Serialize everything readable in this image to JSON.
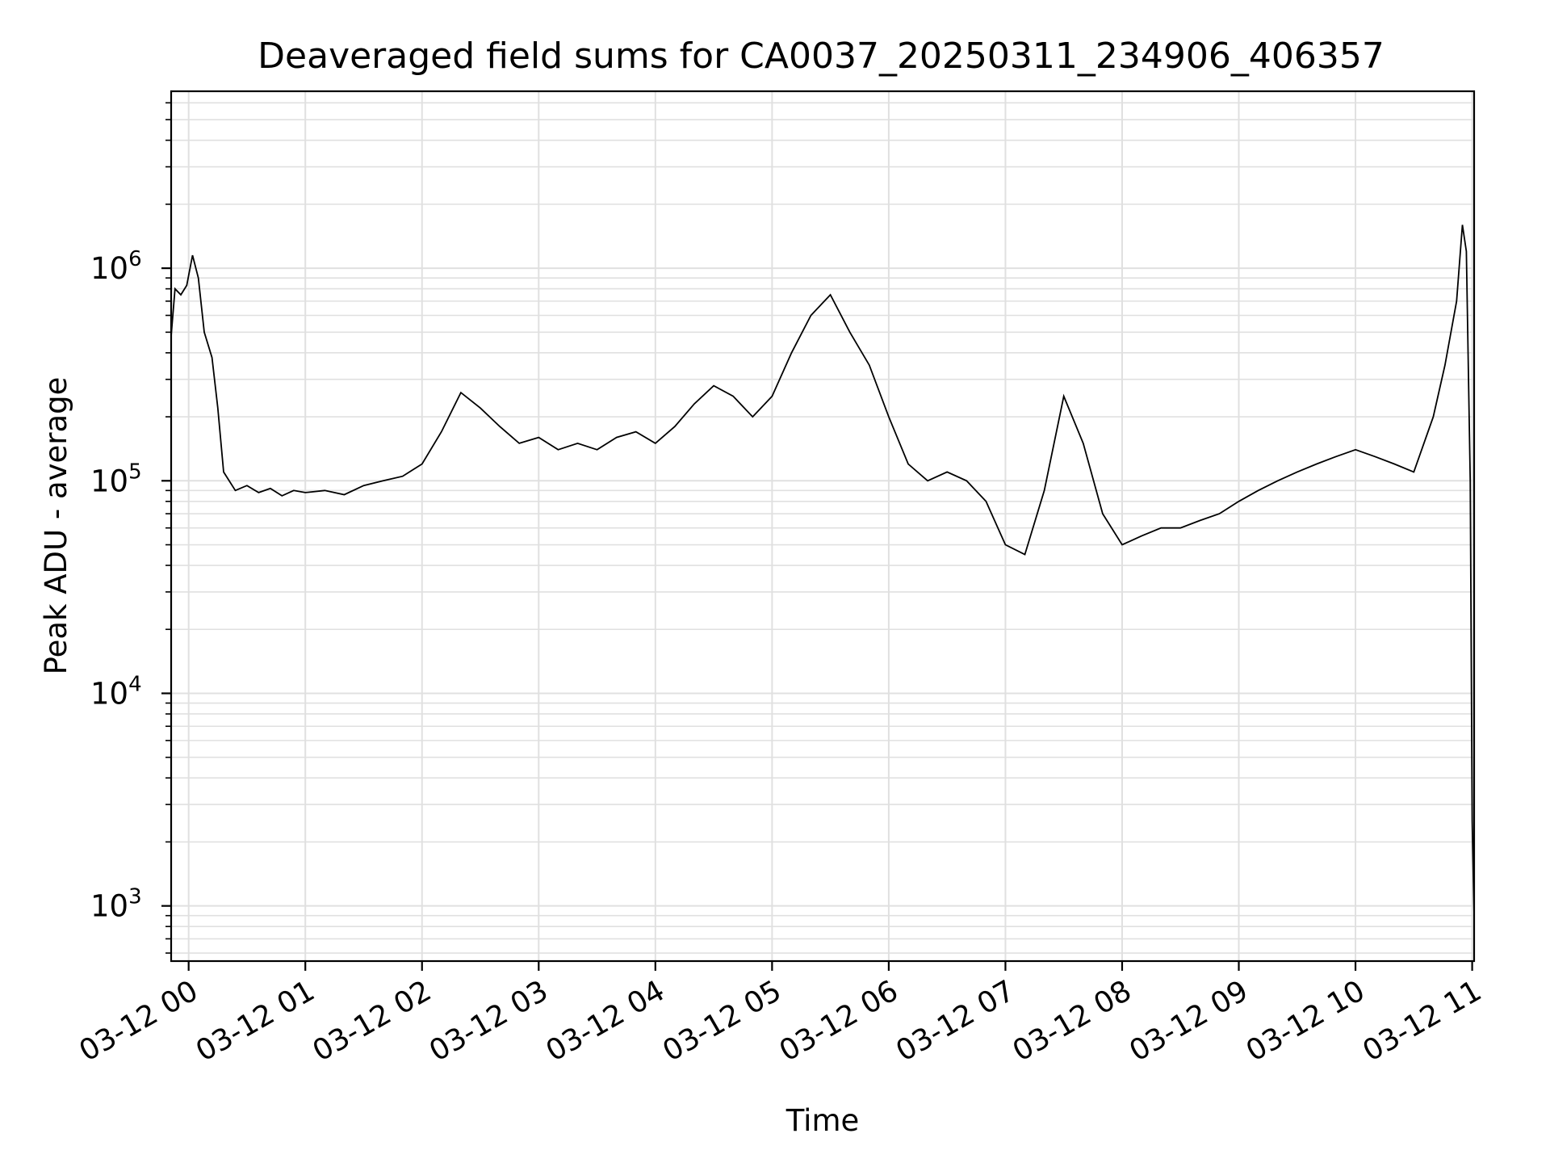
{
  "chart_data": {
    "type": "line",
    "title": "Deaveraged field sums for CA0037_20250311_234906_406357",
    "xlabel": "Time",
    "ylabel": "Peak ADU - average",
    "yscale": "log",
    "ylim": [
      550,
      6800000
    ],
    "xlim": [
      "2025-03-11 23:51",
      "2025-03-12 11:01"
    ],
    "grid": true,
    "line_color": "#000000",
    "grid_color": "#e0e0e0",
    "x_ticks": [
      {
        "at": "2025-03-12 00:00",
        "label": "03-12 00"
      },
      {
        "at": "2025-03-12 01:00",
        "label": "03-12 01"
      },
      {
        "at": "2025-03-12 02:00",
        "label": "03-12 02"
      },
      {
        "at": "2025-03-12 03:00",
        "label": "03-12 03"
      },
      {
        "at": "2025-03-12 04:00",
        "label": "03-12 04"
      },
      {
        "at": "2025-03-12 05:00",
        "label": "03-12 05"
      },
      {
        "at": "2025-03-12 06:00",
        "label": "03-12 06"
      },
      {
        "at": "2025-03-12 07:00",
        "label": "03-12 07"
      },
      {
        "at": "2025-03-12 08:00",
        "label": "03-12 08"
      },
      {
        "at": "2025-03-12 09:00",
        "label": "03-12 09"
      },
      {
        "at": "2025-03-12 10:00",
        "label": "03-12 10"
      },
      {
        "at": "2025-03-12 11:00",
        "label": "03-12 11"
      }
    ],
    "y_ticks": [
      {
        "value": 1000,
        "base": "10",
        "exp": "3"
      },
      {
        "value": 10000,
        "base": "10",
        "exp": "4"
      },
      {
        "value": 100000,
        "base": "10",
        "exp": "5"
      },
      {
        "value": 1000000,
        "base": "10",
        "exp": "6"
      }
    ],
    "series": [
      {
        "values": [
          [
            "2025-03-11 23:51",
            480000
          ],
          [
            "2025-03-11 23:53",
            800000
          ],
          [
            "2025-03-11 23:56",
            750000
          ],
          [
            "2025-03-11 23:59",
            830000
          ],
          [
            "2025-03-12 00:02",
            1150000
          ],
          [
            "2025-03-12 00:05",
            900000
          ],
          [
            "2025-03-12 00:08",
            500000
          ],
          [
            "2025-03-12 00:12",
            380000
          ],
          [
            "2025-03-12 00:15",
            220000
          ],
          [
            "2025-03-12 00:18",
            110000
          ],
          [
            "2025-03-12 00:24",
            90000
          ],
          [
            "2025-03-12 00:30",
            95000
          ],
          [
            "2025-03-12 00:36",
            88000
          ],
          [
            "2025-03-12 00:42",
            92000
          ],
          [
            "2025-03-12 00:48",
            85000
          ],
          [
            "2025-03-12 00:54",
            90000
          ],
          [
            "2025-03-12 01:00",
            88000
          ],
          [
            "2025-03-12 01:10",
            90000
          ],
          [
            "2025-03-12 01:20",
            86000
          ],
          [
            "2025-03-12 01:30",
            95000
          ],
          [
            "2025-03-12 01:40",
            100000
          ],
          [
            "2025-03-12 01:50",
            105000
          ],
          [
            "2025-03-12 02:00",
            120000
          ],
          [
            "2025-03-12 02:10",
            170000
          ],
          [
            "2025-03-12 02:20",
            260000
          ],
          [
            "2025-03-12 02:30",
            220000
          ],
          [
            "2025-03-12 02:40",
            180000
          ],
          [
            "2025-03-12 02:50",
            150000
          ],
          [
            "2025-03-12 03:00",
            160000
          ],
          [
            "2025-03-12 03:10",
            140000
          ],
          [
            "2025-03-12 03:20",
            150000
          ],
          [
            "2025-03-12 03:30",
            140000
          ],
          [
            "2025-03-12 03:40",
            160000
          ],
          [
            "2025-03-12 03:50",
            170000
          ],
          [
            "2025-03-12 04:00",
            150000
          ],
          [
            "2025-03-12 04:10",
            180000
          ],
          [
            "2025-03-12 04:20",
            230000
          ],
          [
            "2025-03-12 04:30",
            280000
          ],
          [
            "2025-03-12 04:40",
            250000
          ],
          [
            "2025-03-12 04:50",
            200000
          ],
          [
            "2025-03-12 05:00",
            250000
          ],
          [
            "2025-03-12 05:10",
            400000
          ],
          [
            "2025-03-12 05:20",
            600000
          ],
          [
            "2025-03-12 05:30",
            750000
          ],
          [
            "2025-03-12 05:40",
            500000
          ],
          [
            "2025-03-12 05:50",
            350000
          ],
          [
            "2025-03-12 06:00",
            200000
          ],
          [
            "2025-03-12 06:10",
            120000
          ],
          [
            "2025-03-12 06:20",
            100000
          ],
          [
            "2025-03-12 06:30",
            110000
          ],
          [
            "2025-03-12 06:40",
            100000
          ],
          [
            "2025-03-12 06:50",
            80000
          ],
          [
            "2025-03-12 07:00",
            50000
          ],
          [
            "2025-03-12 07:10",
            45000
          ],
          [
            "2025-03-12 07:20",
            90000
          ],
          [
            "2025-03-12 07:30",
            250000
          ],
          [
            "2025-03-12 07:40",
            150000
          ],
          [
            "2025-03-12 07:50",
            70000
          ],
          [
            "2025-03-12 08:00",
            50000
          ],
          [
            "2025-03-12 08:10",
            55000
          ],
          [
            "2025-03-12 08:20",
            60000
          ],
          [
            "2025-03-12 08:30",
            60000
          ],
          [
            "2025-03-12 08:40",
            65000
          ],
          [
            "2025-03-12 08:50",
            70000
          ],
          [
            "2025-03-12 09:00",
            80000
          ],
          [
            "2025-03-12 09:10",
            90000
          ],
          [
            "2025-03-12 09:20",
            100000
          ],
          [
            "2025-03-12 09:30",
            110000
          ],
          [
            "2025-03-12 09:40",
            120000
          ],
          [
            "2025-03-12 09:50",
            130000
          ],
          [
            "2025-03-12 10:00",
            140000
          ],
          [
            "2025-03-12 10:10",
            130000
          ],
          [
            "2025-03-12 10:20",
            120000
          ],
          [
            "2025-03-12 10:30",
            110000
          ],
          [
            "2025-03-12 10:40",
            200000
          ],
          [
            "2025-03-12 10:46",
            350000
          ],
          [
            "2025-03-12 10:52",
            700000
          ],
          [
            "2025-03-12 10:55",
            1600000
          ],
          [
            "2025-03-12 10:57",
            1200000
          ],
          [
            "2025-03-12 10:59",
            100000
          ],
          [
            "2025-03-12 11:00",
            2500
          ],
          [
            "2025-03-12 11:01",
            900
          ]
        ]
      }
    ]
  }
}
